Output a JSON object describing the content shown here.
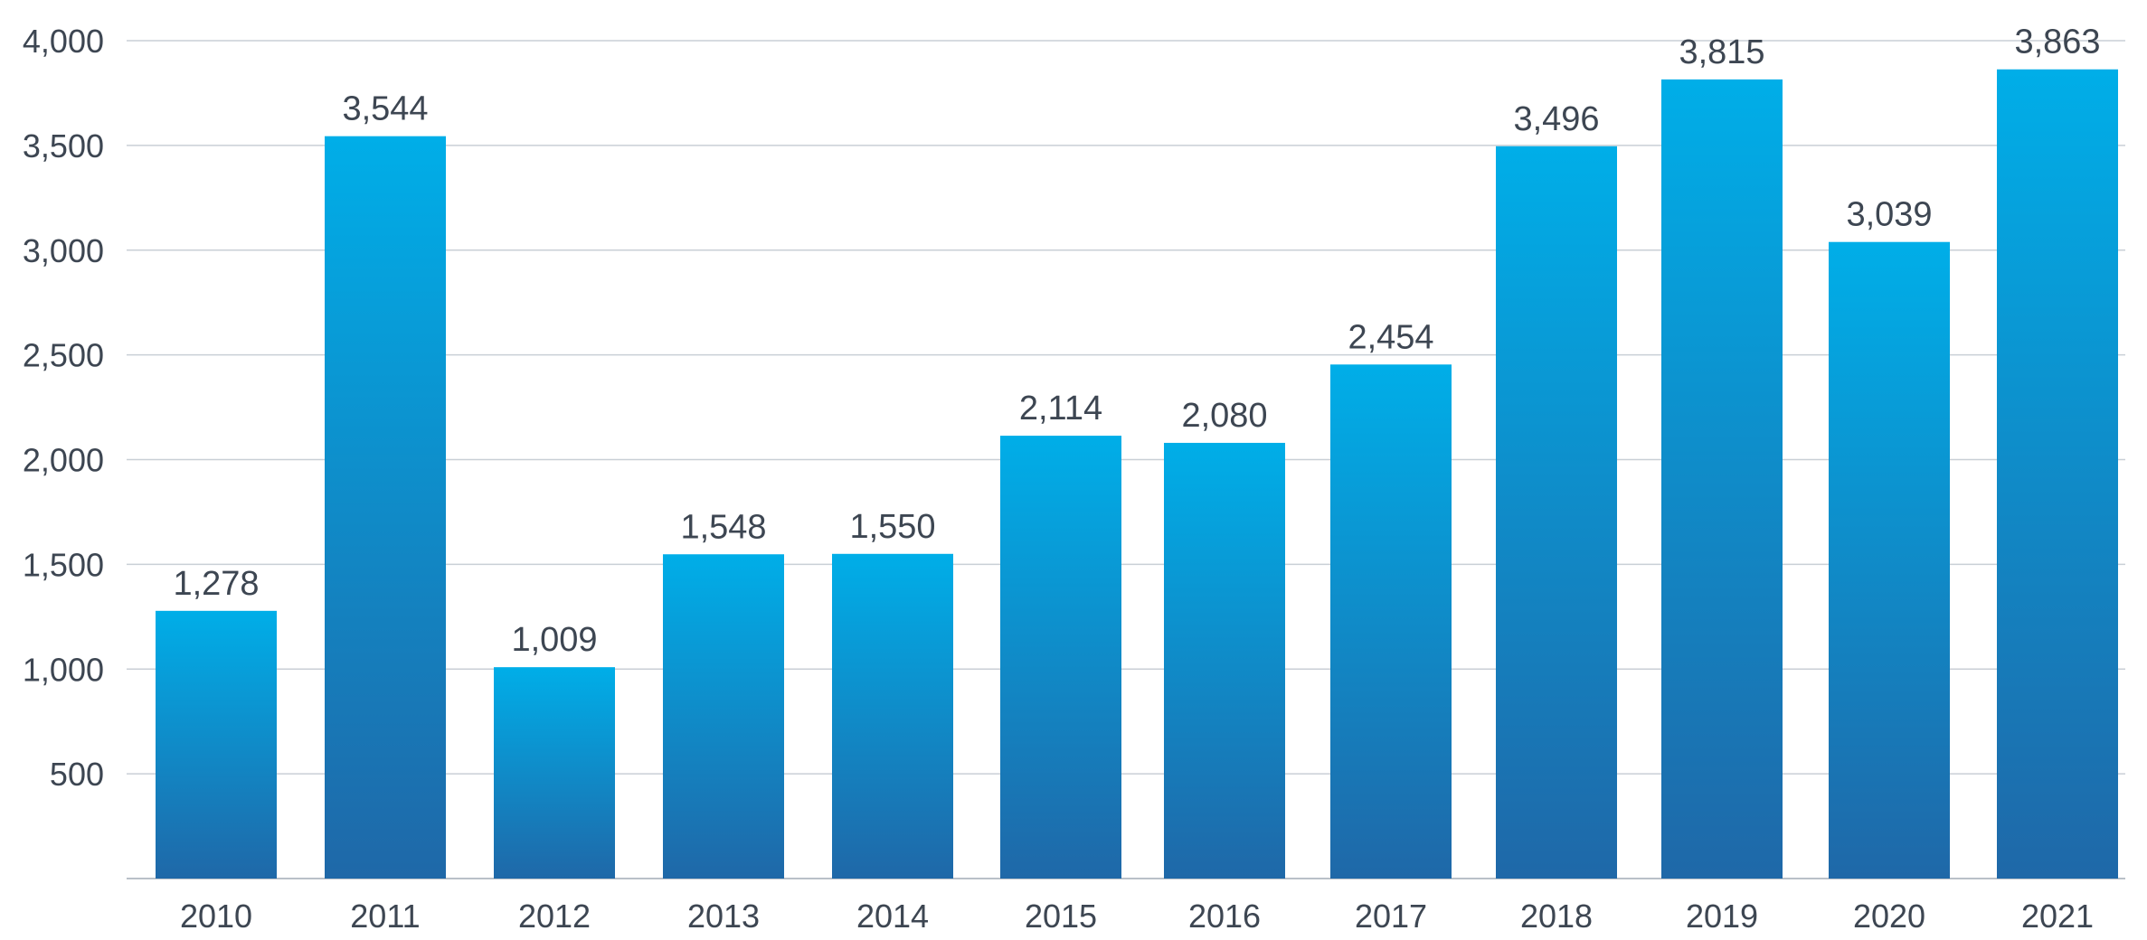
{
  "chart_data": {
    "type": "bar",
    "title": "",
    "xlabel": "",
    "ylabel": "",
    "categories": [
      "2010",
      "2011",
      "2012",
      "2013",
      "2014",
      "2015",
      "2016",
      "2017",
      "2018",
      "2019",
      "2020",
      "2021"
    ],
    "values": [
      1278,
      3544,
      1009,
      1548,
      1550,
      2114,
      2080,
      2454,
      3496,
      3815,
      3039,
      3863
    ],
    "value_labels": [
      "1,278",
      "3,544",
      "1,009",
      "1,548",
      "1,550",
      "2,114",
      "2,080",
      "2,454",
      "3,496",
      "3,815",
      "3,039",
      "3,863"
    ],
    "ylim": [
      0,
      4000
    ],
    "yticks": [
      500,
      1000,
      1500,
      2000,
      2500,
      3000,
      3500,
      4000
    ],
    "ytick_labels": [
      "500",
      "1,000",
      "1,500",
      "2,000",
      "2,500",
      "3,000",
      "3,500",
      "4,000"
    ],
    "grid": true,
    "legend": "none",
    "colors": {
      "bar_top": "#00aee8",
      "bar_bottom": "#1f68a8",
      "grid": "#c9cfd6",
      "text": "#3d4652"
    }
  }
}
